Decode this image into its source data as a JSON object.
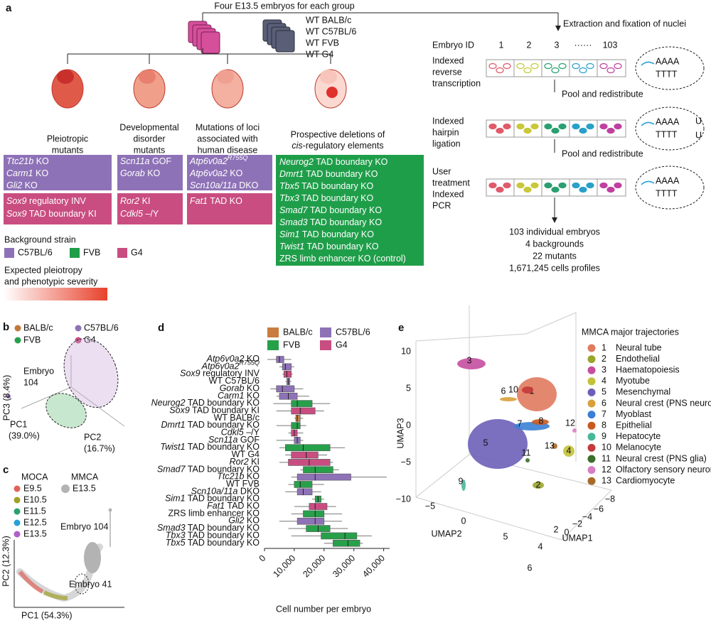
{
  "panel_a": {
    "label": "a",
    "top_text": "Four E13.5 embryos for each group",
    "wt_strains": [
      "WT BALB/c",
      "WT C57BL/6",
      "WT FVB",
      "WT G4"
    ],
    "groups": [
      {
        "title": [
          "Pleiotropic",
          "mutants"
        ],
        "purple": [
          {
            "gene": "Ttc21b",
            "rest": " KO"
          },
          {
            "gene": "Carm1",
            "rest": " KO"
          },
          {
            "gene": "Gli2",
            "rest": " KO"
          }
        ],
        "pink": [
          {
            "gene": "Sox9",
            "rest": " regulatory INV"
          },
          {
            "gene": "Sox9",
            "rest": " TAD boundary KI"
          }
        ]
      },
      {
        "title": [
          "Developmental",
          "disorder",
          "mutants"
        ],
        "purple": [
          {
            "gene": "Scn11a",
            "rest": " GOF"
          },
          {
            "gene": "Gorab",
            "rest": " KO"
          }
        ],
        "pink": [
          {
            "gene": "Ror2",
            "rest": " KI"
          },
          {
            "gene": "Cdkl5",
            "rest": " –/Y"
          }
        ]
      },
      {
        "title": [
          "Mutations of loci",
          "associated with",
          "human disease"
        ],
        "purple": [
          {
            "gene": "Atp6v0a2",
            "sup": "R755Q"
          },
          {
            "gene": "Atp6v0a2",
            "rest": " KO"
          },
          {
            "gene": "Scn10a/11a",
            "rest": " DKO"
          }
        ],
        "pink": [
          {
            "gene": "Fat1",
            "rest": " TAD KO"
          }
        ]
      },
      {
        "title": [
          "Prospective deletions of",
          {
            "gene": "cis",
            "rest": "-regulatory elements"
          }
        ],
        "green": [
          {
            "gene": "Neurog2",
            "rest": " TAD boundary KO"
          },
          {
            "gene": "Dmrt1",
            "rest": " TAD boundary KO"
          },
          {
            "gene": "Tbx5",
            "rest": " TAD boundary KO"
          },
          {
            "gene": "Tbx3",
            "rest": " TAD boundary KO"
          },
          {
            "gene": "Smad7",
            "rest": " TAD boundary KO"
          },
          {
            "gene": "Smad3",
            "rest": " TAD boundary KO"
          },
          {
            "gene": "Sim1",
            "rest": " TAD boundary KO"
          },
          {
            "gene": "Twist1",
            "rest": " TAD boundary KO"
          },
          {
            "rest": "ZRS limb enhancer KO (control)"
          }
        ]
      }
    ],
    "legend_title": "Background strain",
    "strains": [
      {
        "name": "C57BL/6",
        "color": "#8e72b7"
      },
      {
        "name": "FVB",
        "color": "#1f9e4a"
      },
      {
        "name": "G4",
        "color": "#c94d80"
      }
    ],
    "severity": [
      "Expected pleiotropy",
      "and phenotypic severity"
    ],
    "extraction": "Extraction and fixation of nuclei",
    "embryo_id_label": "Embryo ID",
    "embryo_ids": [
      "1",
      "2",
      "3",
      "······",
      "103"
    ],
    "steps": [
      [
        "Indexed",
        "reverse",
        "transcription"
      ],
      [
        "Indexed",
        "hairpin",
        "ligation"
      ],
      [
        "User",
        "treatment",
        "Indexed",
        "PCR"
      ]
    ],
    "pool": "Pool and redistribute",
    "seq": [
      "AAAA",
      "TTTT"
    ],
    "u": "U",
    "summary": [
      "103 individual embryos",
      "4 backgrounds",
      "22 mutants",
      "1,671,245 cells profiles"
    ]
  },
  "panel_b": {
    "label": "b",
    "legend": [
      {
        "name": "BALB/c",
        "color": "#c0793a"
      },
      {
        "name": "C57BL/6",
        "color": "#8e72b7"
      },
      {
        "name": "FVB",
        "color": "#27a04a"
      },
      {
        "name": "G4",
        "color": "#c94d80"
      }
    ],
    "annotation": [
      "Embryo",
      "104"
    ],
    "y_label": "PC3 (8.4%)",
    "x_label": [
      "PC1",
      "(39.0%)"
    ],
    "z_label": [
      "PC2",
      "(16.7%)"
    ]
  },
  "panel_c": {
    "label": "c",
    "moca": "MOCA",
    "stages": [
      {
        "name": "E9.5",
        "color": "#e0635a"
      },
      {
        "name": "E10.5",
        "color": "#a0a02a"
      },
      {
        "name": "E11.5",
        "color": "#2aa070"
      },
      {
        "name": "E12.5",
        "color": "#2a9fd8"
      },
      {
        "name": "E13.5",
        "color": "#b060c8"
      }
    ],
    "mmca": "MMCA",
    "mmca_stage": {
      "name": "E13.5",
      "color": "#b3b3b3"
    },
    "annotations": [
      "Embryo 104",
      "Embryo 41"
    ],
    "x_label": "PC1 (54.3%)",
    "y_label": "PC2 (12.3%)"
  },
  "panel_d": {
    "label": "d",
    "legend": [
      {
        "name": "BALB/c",
        "color": "#c97d3e"
      },
      {
        "name": "C57BL/6",
        "color": "#8e72b7"
      },
      {
        "name": "FVB",
        "color": "#27a04a"
      },
      {
        "name": "G4",
        "color": "#c94d80"
      }
    ],
    "xlim": [
      0,
      42000
    ],
    "xticks": [
      0,
      {
        "value": 10000,
        "label": "10,000"
      },
      {
        "value": 20000,
        "label": "20,000"
      },
      {
        "value": 30000,
        "label": "30,000"
      },
      {
        "value": 40000,
        "label": "40,000"
      }
    ],
    "x_label": "Cell number per embryo",
    "rows": [
      {
        "label": {
          "gene": "Atp6v0a2",
          "rest": " KO"
        },
        "strain": "C57BL/6",
        "min": 1000,
        "q1": 4000,
        "median": 5000,
        "q3": 6500,
        "max": 9000
      },
      {
        "label": {
          "gene": "Atp6v0a2",
          "sup": "R755Q"
        },
        "strain": "C57BL/6",
        "min": 5000,
        "q1": 6000,
        "median": 7000,
        "q3": 9000,
        "max": 10000
      },
      {
        "label": {
          "gene": "Sox9",
          "rest": " regulatory INV"
        },
        "strain": "G4",
        "min": 6000,
        "q1": 6500,
        "median": 7500,
        "q3": 9000,
        "max": 9500
      },
      {
        "label": {
          "rest": "WT C57BL/6"
        },
        "strain": "C57BL/6",
        "min": 7000,
        "q1": 7500,
        "median": 8000,
        "q3": 8500,
        "max": 9000
      },
      {
        "label": {
          "gene": "Gorab",
          "rest": " KO"
        },
        "strain": "C57BL/6",
        "min": 2000,
        "q1": 4000,
        "median": 6000,
        "q3": 10000,
        "max": 13000
      },
      {
        "label": {
          "gene": "Carm1",
          "rest": " KO"
        },
        "strain": "C57BL/6",
        "min": 4000,
        "q1": 5000,
        "median": 8000,
        "q3": 11000,
        "max": 15000
      },
      {
        "label": {
          "gene": "Neurog2",
          "rest": " TAD boundary KO"
        },
        "strain": "FVB",
        "min": 3000,
        "q1": 9000,
        "median": 11000,
        "q3": 16000,
        "max": 22000
      },
      {
        "label": {
          "gene": "Sox9",
          "rest": " TAD boundary KI"
        },
        "strain": "G4",
        "min": 4000,
        "q1": 9000,
        "median": 12000,
        "q3": 17000,
        "max": 20000
      },
      {
        "label": {
          "rest": "WT BALB/c"
        },
        "strain": "BALB/c",
        "min": 10000,
        "q1": 10500,
        "median": 11000,
        "q3": 12000,
        "max": 13000
      },
      {
        "label": {
          "gene": "Dmrt1",
          "rest": " TAD boundary KO"
        },
        "strain": "FVB",
        "min": 4000,
        "q1": 9000,
        "median": 11000,
        "q3": 12000,
        "max": 14000
      },
      {
        "label": {
          "gene": "Cdkl5",
          "rest": " –/Y"
        },
        "strain": "G4",
        "min": 8000,
        "q1": 9000,
        "median": 10000,
        "q3": 11000,
        "max": 13000
      },
      {
        "label": {
          "gene": "Scn11a",
          "rest": " GOF"
        },
        "strain": "C57BL/6",
        "min": 4000,
        "q1": 10000,
        "median": 11000,
        "q3": 12000,
        "max": 13000
      },
      {
        "label": {
          "gene": "Twist1",
          "rest": " TAD boundary KO"
        },
        "strain": "FVB",
        "min": 5000,
        "q1": 7000,
        "median": 13000,
        "q3": 22000,
        "max": 27000
      },
      {
        "label": {
          "rest": "WT G4"
        },
        "strain": "G4",
        "min": 7000,
        "q1": 9000,
        "median": 14000,
        "q3": 18000,
        "max": 21000
      },
      {
        "label": {
          "gene": "Ror2",
          "rest": " KI"
        },
        "strain": "G4",
        "min": 5000,
        "q1": 8000,
        "median": 15000,
        "q3": 22000,
        "max": 23000
      },
      {
        "label": {
          "gene": "Smad7",
          "rest": " TAD boundary KO"
        },
        "strain": "FVB",
        "min": 12000,
        "q1": 13000,
        "median": 17000,
        "q3": 23000,
        "max": 25000
      },
      {
        "label": {
          "gene": "Ttc21b",
          "rest": " KO"
        },
        "strain": "C57BL/6",
        "min": 9000,
        "q1": 11000,
        "median": 17000,
        "q3": 29000,
        "max": 41000
      },
      {
        "label": {
          "rest": "WT FVB"
        },
        "strain": "FVB",
        "min": 8000,
        "q1": 10000,
        "median": 12000,
        "q3": 16000,
        "max": 20000
      },
      {
        "label": {
          "gene": "Scn10a/11a",
          "rest": " DKO"
        },
        "strain": "C57BL/6",
        "min": 7000,
        "q1": 11000,
        "median": 13000,
        "q3": 16000,
        "max": 19000
      },
      {
        "label": {
          "gene": "Sim1",
          "rest": " TAD boundary KO"
        },
        "strain": "FVB",
        "min": 16000,
        "q1": 17000,
        "median": 18000,
        "q3": 19000,
        "max": 20000
      },
      {
        "label": {
          "gene": "Fat1",
          "rest": " TAD KO"
        },
        "strain": "G4",
        "min": 10000,
        "q1": 15000,
        "median": 17000,
        "q3": 21000,
        "max": 24000
      },
      {
        "label": {
          "rest": "ZRS limb enhancer KO"
        },
        "strain": "FVB",
        "min": 9000,
        "q1": 13000,
        "median": 17000,
        "q3": 20000,
        "max": 26000
      },
      {
        "label": {
          "gene": "Gli2",
          "rest": " KO"
        },
        "strain": "C57BL/6",
        "min": 5000,
        "q1": 11000,
        "median": 17000,
        "q3": 20000,
        "max": 26000
      },
      {
        "label": {
          "gene": "Smad3",
          "rest": " TAD boundary KO"
        },
        "strain": "FVB",
        "min": 8000,
        "q1": 14000,
        "median": 18000,
        "q3": 22000,
        "max": 28000
      },
      {
        "label": {
          "gene": "Tbx3",
          "rest": " TAD boundary KO"
        },
        "strain": "FVB",
        "min": 9000,
        "q1": 19000,
        "median": 27000,
        "q3": 31000,
        "max": 36000
      },
      {
        "label": {
          "gene": "Tbx5",
          "rest": " TAD boundary KO"
        },
        "strain": "FVB",
        "min": 20000,
        "q1": 23000,
        "median": 28000,
        "q3": 32000,
        "max": 33000
      }
    ]
  },
  "panel_e": {
    "label": "e",
    "legend_title": "MMCA major trajectories",
    "trajectories": [
      {
        "id": "1",
        "name": "Neural tube",
        "color": "#e07b5f"
      },
      {
        "id": "2",
        "name": "Endothelial",
        "color": "#9aa52e"
      },
      {
        "id": "3",
        "name": "Haematopoiesis",
        "color": "#c44fa0"
      },
      {
        "id": "4",
        "name": "Myotube",
        "color": "#c2c23a"
      },
      {
        "id": "5",
        "name": "Mesenchymal",
        "color": "#6d5fb8"
      },
      {
        "id": "6",
        "name": "Neural crest (PNS neuron)",
        "color": "#d9a03a"
      },
      {
        "id": "7",
        "name": "Myoblast",
        "color": "#3a7fd5"
      },
      {
        "id": "8",
        "name": "Epithelial",
        "color": "#c85a1e"
      },
      {
        "id": "9",
        "name": "Hepatocyte",
        "color": "#47b89a"
      },
      {
        "id": "10",
        "name": "Melanocyte",
        "color": "#c43a3a"
      },
      {
        "id": "11",
        "name": "Neural crest (PNS glia)",
        "color": "#3a6e2a"
      },
      {
        "id": "12",
        "name": "Olfactory sensory neuron",
        "color": "#d87ec3"
      },
      {
        "id": "13",
        "name": "Cardiomyocyte",
        "color": "#a86b2a"
      }
    ],
    "axis_labels": [
      "UMAP3",
      "UMAP2",
      "UMAP1"
    ],
    "umap3_ticks": [
      "10",
      "5",
      "0",
      "−5",
      "−10"
    ],
    "umap2_ticks": [
      "−5",
      "0",
      "5"
    ],
    "umap1_ticks": [
      "−8",
      "−6",
      "−4",
      "−2",
      "0",
      "2",
      "4",
      "6"
    ]
  }
}
